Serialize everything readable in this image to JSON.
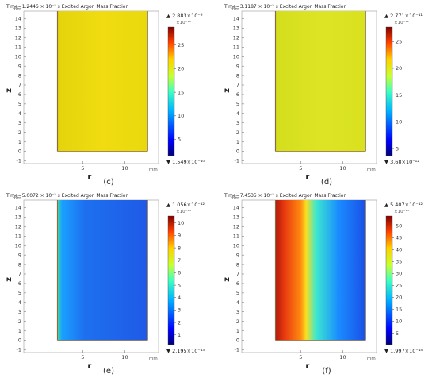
{
  "figure": {
    "panels": [
      {
        "caption": "(c)",
        "time_text": "Time=1.2446 × 10⁻⁵ s",
        "title": "Excited Argon Mass Fraction",
        "xlabel": "r",
        "ylabel": "z",
        "unit": "mm",
        "field_colors": [
          "#e8d90e",
          "#f0dc10",
          "#e4d40c"
        ],
        "colorbar": {
          "max_text": "2.883×10⁻⁹",
          "min_text": "1.549×10⁻¹⁰",
          "exponent_text": "×10⁻¹⁰",
          "ticks": [
            "25",
            "20",
            "15",
            "10",
            "5"
          ],
          "tick_values": [
            25,
            20,
            15,
            10,
            5
          ],
          "range": [
            1.549,
            28.83
          ]
        }
      },
      {
        "caption": "(d)",
        "time_text": "Time=3.1187 × 10⁻⁵ s",
        "title": "Excited Argon Mass Fraction",
        "xlabel": "r",
        "ylabel": "z",
        "unit": "mm",
        "field_colors": [
          "#d9e21f",
          "#dde424",
          "#d4de1c"
        ],
        "colorbar": {
          "max_text": "2.771×10⁻¹¹",
          "min_text": "3.68×10⁻¹²",
          "exponent_text": "×10⁻¹²",
          "ticks": [
            "25",
            "20",
            "15",
            "10",
            "5"
          ],
          "tick_values": [
            25,
            20,
            15,
            10,
            5
          ],
          "range": [
            3.68,
            27.71
          ]
        }
      },
      {
        "caption": "(e)",
        "time_text": "Time=5.0072 × 10⁻⁵ s",
        "title": "Excited Argon Mass Fraction",
        "xlabel": "r",
        "ylabel": "z",
        "unit": "mm",
        "field_colors": [
          "#1fa8ff",
          "#1e6ff2",
          "#1f5fe8"
        ],
        "colorbar": {
          "max_text": "1.056×10⁻¹²",
          "min_text": "2.195×10⁻¹³",
          "exponent_text": "×10⁻¹³",
          "ticks": [
            "10",
            "9",
            "8",
            "7",
            "6",
            "5",
            "4",
            "3",
            "2",
            "1"
          ],
          "tick_values": [
            10,
            9,
            8,
            7,
            6,
            5,
            4,
            3,
            2,
            1
          ],
          "range": [
            0.2195,
            10.56
          ]
        }
      },
      {
        "caption": "(f)",
        "time_text": "Time=7.4535 × 10⁻⁵ s",
        "title": "Excited Argon Mass Fraction",
        "xlabel": "r",
        "ylabel": "z",
        "unit": "mm",
        "field_colors": [
          "#c8240c",
          "#28d0ff",
          "#1a5ff0"
        ],
        "colorbar": {
          "max_text": "5.407×10⁻¹²",
          "min_text": "1.997×10⁻¹⁴",
          "exponent_text": "×10⁻¹³",
          "ticks": [
            "50",
            "45",
            "40",
            "35",
            "30",
            "25",
            "20",
            "15",
            "10",
            "5"
          ],
          "tick_values": [
            50,
            45,
            40,
            35,
            30,
            25,
            20,
            15,
            10,
            5
          ],
          "range": [
            0.1997,
            54.07
          ]
        }
      }
    ]
  },
  "chart_data": [
    {
      "type": "heatmap",
      "title": "Excited Argon Mass Fraction",
      "xlabel": "r",
      "ylabel": "z",
      "x_ticks": [
        5,
        10
      ],
      "y_ticks": [
        -1,
        0,
        1,
        2,
        3,
        4,
        5,
        6,
        7,
        8,
        9,
        10,
        11,
        12,
        13,
        14
      ],
      "xlim": [
        -2,
        14
      ],
      "ylim": [
        -1.3,
        14.8
      ],
      "colorbar_range": [
        1.549e-10,
        2.883e-09
      ]
    },
    {
      "type": "heatmap",
      "title": "Excited Argon Mass Fraction",
      "xlabel": "r",
      "ylabel": "z",
      "x_ticks": [
        5,
        10
      ],
      "y_ticks": [
        -1,
        0,
        1,
        2,
        3,
        4,
        5,
        6,
        7,
        8,
        9,
        10,
        11,
        12,
        13,
        14
      ],
      "xlim": [
        -2,
        14
      ],
      "ylim": [
        -1.3,
        14.8
      ],
      "colorbar_range": [
        3.68e-12,
        2.771e-11
      ]
    },
    {
      "type": "heatmap",
      "title": "Excited Argon Mass Fraction",
      "xlabel": "r",
      "ylabel": "z",
      "x_ticks": [
        5,
        10
      ],
      "y_ticks": [
        -1,
        0,
        1,
        2,
        3,
        4,
        5,
        6,
        7,
        8,
        9,
        10,
        11,
        12,
        13,
        14
      ],
      "xlim": [
        -2,
        14
      ],
      "ylim": [
        -1.3,
        14.8
      ],
      "colorbar_range": [
        2.195e-13,
        1.056e-12
      ]
    },
    {
      "type": "heatmap",
      "title": "Excited Argon Mass Fraction",
      "xlabel": "r",
      "ylabel": "z",
      "x_ticks": [
        5,
        10
      ],
      "y_ticks": [
        -1,
        0,
        1,
        2,
        3,
        4,
        5,
        6,
        7,
        8,
        9,
        10,
        11,
        12,
        13,
        14
      ],
      "xlim": [
        -2,
        14
      ],
      "ylim": [
        -1.3,
        14.8
      ],
      "colorbar_range": [
        1.997e-14,
        5.407e-12
      ]
    }
  ]
}
